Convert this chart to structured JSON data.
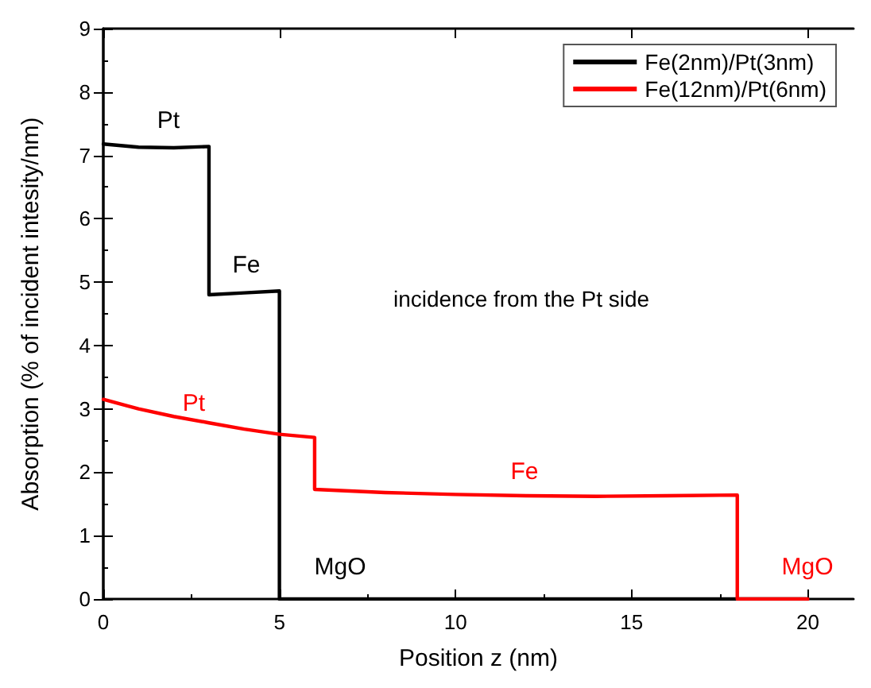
{
  "chart_data": {
    "type": "line",
    "xlabel": "Position z (nm)",
    "ylabel": "Absorption (% of incident intesity/nm)",
    "xlim": [
      0,
      21.3
    ],
    "xticks": [
      0,
      5,
      10,
      15,
      20
    ],
    "ylim": [
      0,
      9
    ],
    "yticks": [
      0,
      1,
      2,
      3,
      4,
      5,
      6,
      7,
      8,
      9
    ],
    "grid": false,
    "legend": "top right",
    "marker": "none",
    "line_style": "solid",
    "series": [
      {
        "name": "Fe(2nm)/Pt(3nm)",
        "color": "#000000",
        "x": [
          0,
          1,
          2,
          3,
          3,
          4,
          5,
          5,
          20
        ],
        "values": [
          7.18,
          7.13,
          7.12,
          7.14,
          4.8,
          4.83,
          4.86,
          0,
          0
        ]
      },
      {
        "name": "Fe(12nm)/Pt(6nm)",
        "color": "#ff0000",
        "x": [
          0,
          1,
          2,
          3,
          4,
          5,
          6,
          6,
          8,
          10,
          12,
          14,
          16,
          18,
          18,
          20
        ],
        "values": [
          3.15,
          3.0,
          2.88,
          2.78,
          2.68,
          2.6,
          2.55,
          1.73,
          1.68,
          1.65,
          1.63,
          1.62,
          1.63,
          1.64,
          0,
          0
        ]
      }
    ],
    "annotations": [
      "Pt",
      "Fe",
      "MgO",
      "Pt",
      "Fe",
      "MgO",
      "incidence from the Pt side"
    ]
  }
}
